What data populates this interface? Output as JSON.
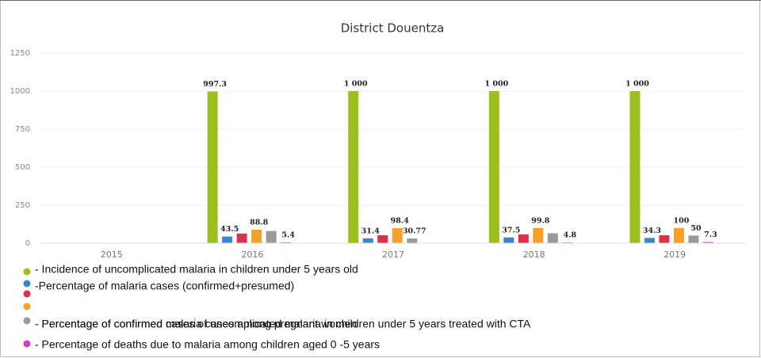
{
  "chart_data": {
    "type": "bar",
    "title": "District Douentza",
    "categories": [
      "2015",
      "2016",
      "2017",
      "2018",
      "2019"
    ],
    "ylim": [
      0,
      1250
    ],
    "yticks": [
      0,
      250,
      500,
      750,
      1000,
      1250
    ],
    "grid": true,
    "series": [
      {
        "name": "- Incidence of uncomplicated malaria in children under 5 years old",
        "color": "#9bbf1f",
        "values": [
          null,
          997.3,
          1000,
          1000,
          1000
        ],
        "value_labels": [
          null,
          "997.3",
          "1 000",
          "1 000",
          "1 000"
        ]
      },
      {
        "name": "-Percentage of malaria cases (confirmed+presumed)",
        "color": "#3a86c8",
        "values": [
          null,
          43.5,
          31.4,
          37.5,
          34.3
        ],
        "value_labels": [
          null,
          "43.5",
          "31.4",
          "37.5",
          "34.3"
        ]
      },
      {
        "color": "#d9334a",
        "values": [
          null,
          63,
          52,
          58,
          52
        ]
      },
      {
        "name": "- Percentage of confirmed malaria cases among pregnant women",
        "color": "#f5a02a",
        "values": [
          null,
          88.8,
          98.4,
          99.8,
          100
        ],
        "value_labels": [
          null,
          "88.8",
          "98.4",
          "99.8",
          "100"
        ]
      },
      {
        "name": "- Percentage of confirmed cases of uncomplicated malaria in children under 5 years treated with CTA",
        "color": "#9a9a9a",
        "values": [
          null,
          80,
          30.77,
          65,
          50
        ],
        "value_labels": [
          null,
          null,
          "30.77",
          null,
          "50"
        ]
      },
      {
        "name": "- Percentage of deaths due to malaria among children aged 0 -5 years",
        "color": "#d23cc0",
        "values": [
          null,
          5.4,
          null,
          4.8,
          7.3
        ],
        "value_labels": [
          null,
          "5.4",
          null,
          "4.8",
          "7.3"
        ]
      }
    ]
  }
}
